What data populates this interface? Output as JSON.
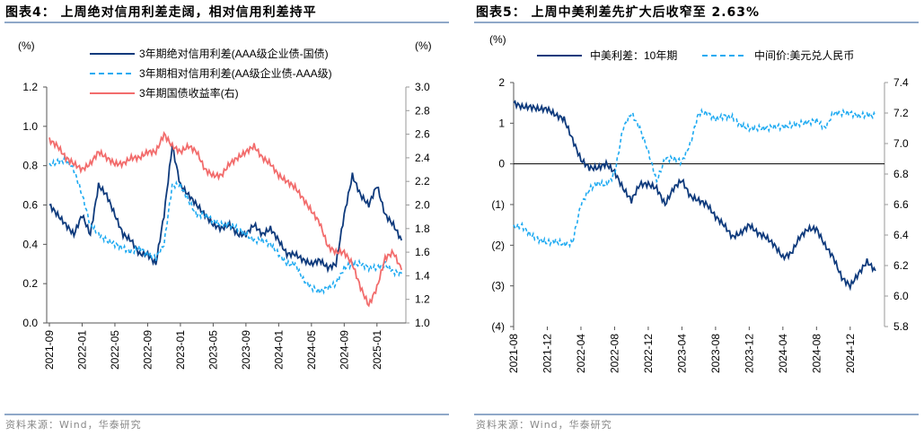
{
  "chart_data": [
    {
      "type": "line",
      "title": "图表4：  上周绝对信用利差走阔，相对信用利差持平",
      "source": "资料来源：Wind，华泰研究",
      "ylabel_left": "(%)",
      "ylabel_right": "(%)",
      "ylim_left": [
        0,
        1.2
      ],
      "ylim_right": [
        1.0,
        3.0
      ],
      "yticks_left": [
        "0.0",
        "0.2",
        "0.4",
        "0.6",
        "0.8",
        "1.0",
        "1.2"
      ],
      "yticks_right": [
        "1.0",
        "1.2",
        "1.4",
        "1.6",
        "1.8",
        "2.0",
        "2.2",
        "2.4",
        "2.6",
        "2.8",
        "3.0"
      ],
      "xticks": [
        "2021-09",
        "2022-01",
        "2022-05",
        "2022-09",
        "2023-01",
        "2023-05",
        "2023-09",
        "2024-01",
        "2024-05",
        "2024-09",
        "2025-01"
      ],
      "x_start": "2021-09",
      "x_end": "2025-04",
      "series": [
        {
          "name": "3年期绝对信用利差(AAA级企业债-国债)",
          "axis": "left",
          "color": "#0e3a7c",
          "style": "solid",
          "values": [
            0.6,
            0.55,
            0.5,
            0.45,
            0.55,
            0.45,
            0.7,
            0.65,
            0.55,
            0.45,
            0.42,
            0.35,
            0.35,
            0.3,
            0.55,
            0.9,
            0.7,
            0.65,
            0.6,
            0.55,
            0.5,
            0.48,
            0.5,
            0.45,
            0.45,
            0.5,
            0.45,
            0.48,
            0.42,
            0.35,
            0.35,
            0.32,
            0.3,
            0.32,
            0.28,
            0.3,
            0.55,
            0.75,
            0.65,
            0.6,
            0.7,
            0.55,
            0.5,
            0.42
          ]
        },
        {
          "name": "3年期相对信用利差(AA级企业债-AAA级)",
          "axis": "left",
          "color": "#1eaaf1",
          "style": "dashed",
          "values": [
            0.8,
            0.82,
            0.83,
            0.78,
            0.65,
            0.5,
            0.45,
            0.42,
            0.4,
            0.38,
            0.36,
            0.38,
            0.35,
            0.33,
            0.4,
            0.7,
            0.7,
            0.62,
            0.55,
            0.55,
            0.52,
            0.5,
            0.5,
            0.48,
            0.45,
            0.42,
            0.42,
            0.4,
            0.35,
            0.3,
            0.3,
            0.22,
            0.18,
            0.16,
            0.18,
            0.2,
            0.28,
            0.3,
            0.3,
            0.28,
            0.28,
            0.3,
            0.26,
            0.25
          ]
        },
        {
          "name": "3年期国债收益率(右)",
          "axis": "right",
          "color": "#f26c6c",
          "style": "solid",
          "values": [
            2.55,
            2.5,
            2.4,
            2.35,
            2.3,
            2.35,
            2.45,
            2.4,
            2.35,
            2.35,
            2.4,
            2.4,
            2.45,
            2.45,
            2.6,
            2.5,
            2.45,
            2.5,
            2.45,
            2.3,
            2.25,
            2.25,
            2.35,
            2.4,
            2.45,
            2.5,
            2.4,
            2.35,
            2.25,
            2.2,
            2.15,
            2.05,
            1.95,
            1.85,
            1.65,
            1.6,
            1.6,
            1.5,
            1.3,
            1.15,
            1.3,
            1.55,
            1.6,
            1.45
          ]
        }
      ]
    },
    {
      "type": "line",
      "title": "图表5：  上周中美利差先扩大后收窄至 2.63%",
      "source": "资料来源：Wind，华泰研究",
      "ylabel_left": "(%)",
      "ylim_left": [
        -4,
        2
      ],
      "ylim_right": [
        5.8,
        7.4
      ],
      "yticks_left": [
        "(4)",
        "(3)",
        "(2)",
        "(1)",
        "0",
        "1",
        "2"
      ],
      "yticks_right": [
        "5.8",
        "6.0",
        "6.2",
        "6.4",
        "6.6",
        "6.8",
        "7.0",
        "7.2",
        "7.4"
      ],
      "xticks": [
        "2021-08",
        "2021-12",
        "2022-04",
        "2022-08",
        "2022-12",
        "2023-04",
        "2023-08",
        "2023-12",
        "2024-04",
        "2024-08",
        "2024-12"
      ],
      "x_start": "2021-08",
      "x_end": "2025-03",
      "series": [
        {
          "name": "中美利差：10年期",
          "axis": "left",
          "color": "#0e3a7c",
          "style": "solid",
          "values": [
            1.5,
            1.4,
            1.4,
            1.35,
            1.35,
            1.2,
            1.1,
            0.6,
            0.1,
            -0.1,
            -0.1,
            0.0,
            -0.2,
            -0.6,
            -0.9,
            -0.5,
            -0.5,
            -0.6,
            -1.0,
            -0.6,
            -0.4,
            -0.8,
            -0.9,
            -1.0,
            -1.3,
            -1.5,
            -1.8,
            -1.7,
            -1.5,
            -1.7,
            -1.8,
            -2.0,
            -2.3,
            -2.2,
            -1.8,
            -1.6,
            -1.6,
            -2.0,
            -2.3,
            -2.8,
            -3.0,
            -2.7,
            -2.4,
            -2.63
          ]
        },
        {
          "name": "中间价:美元兑人民币",
          "axis": "right",
          "color": "#1eaaf1",
          "style": "dashed",
          "values": [
            6.45,
            6.46,
            6.4,
            6.37,
            6.35,
            6.36,
            6.34,
            6.35,
            6.6,
            6.7,
            6.74,
            6.73,
            6.8,
            7.1,
            7.2,
            7.1,
            6.95,
            6.75,
            6.9,
            6.9,
            6.88,
            7.0,
            7.2,
            7.2,
            7.16,
            7.18,
            7.17,
            7.12,
            7.1,
            7.1,
            7.1,
            7.11,
            7.11,
            7.12,
            7.13,
            7.14,
            7.15,
            7.1,
            7.2,
            7.2,
            7.2,
            7.18,
            7.19,
            7.18
          ]
        }
      ]
    }
  ]
}
